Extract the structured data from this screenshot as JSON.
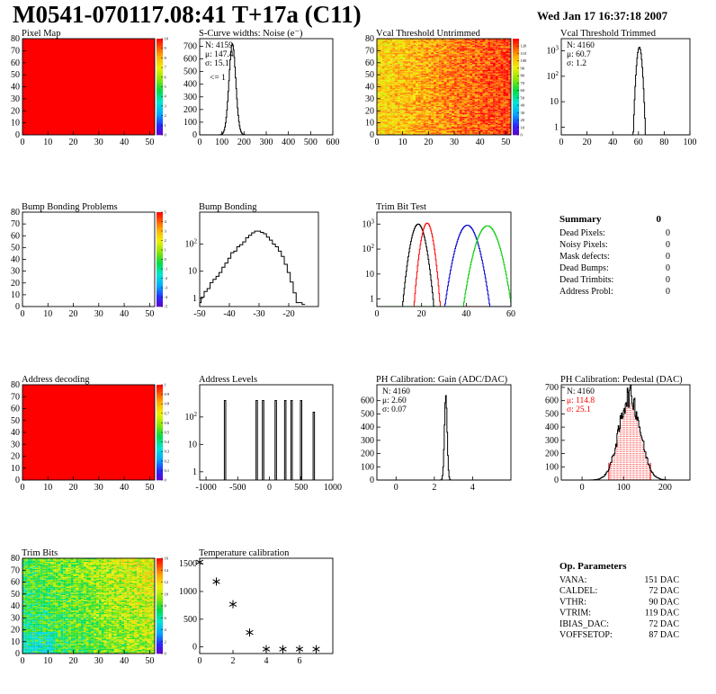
{
  "header": {
    "title": "M0541-070117.08:41 T+17a (C11)",
    "date": "Wed Jan 17 16:37:18 2007"
  },
  "colors": {
    "red_fill": "#ff0000",
    "black": "#000000",
    "red": "#ff0000",
    "blue": "#0000cc",
    "green": "#00cc00"
  },
  "summary": {
    "title": "Summary",
    "total": "0",
    "rows": [
      {
        "label": "Dead Pixels:",
        "value": "0"
      },
      {
        "label": "Noisy Pixels:",
        "value": "0"
      },
      {
        "label": "Mask defects:",
        "value": "0"
      },
      {
        "label": "Dead Bumps:",
        "value": "0"
      },
      {
        "label": "Dead Trimbits:",
        "value": "0"
      },
      {
        "label": "Address Probl:",
        "value": "0"
      }
    ]
  },
  "op_params": {
    "title": "Op. Parameters",
    "rows": [
      {
        "label": "VANA:",
        "value": "151 DAC"
      },
      {
        "label": "CALDEL:",
        "value": "72 DAC"
      },
      {
        "label": "VTHR:",
        "value": "90 DAC"
      },
      {
        "label": "VTRIM:",
        "value": "119 DAC"
      },
      {
        "label": "IBIAS_DAC:",
        "value": "72 DAC"
      },
      {
        "label": "VOFFSETOP:",
        "value": "87 DAC"
      }
    ]
  },
  "chart_data": [
    {
      "id": "pixel-map",
      "type": "heatmap",
      "title": "Pixel Map",
      "xlim": [
        0,
        52
      ],
      "ylim": [
        0,
        80
      ],
      "xticks": [
        0,
        10,
        20,
        30,
        40,
        50
      ],
      "yticks": [
        0,
        10,
        20,
        30,
        40,
        50,
        60,
        70,
        80
      ],
      "fill": "uniform",
      "uniform_value": 10,
      "zlim": [
        0,
        10
      ],
      "zticks": [
        0,
        1,
        2,
        3,
        4,
        5,
        6,
        7,
        8,
        9,
        10
      ]
    },
    {
      "id": "scurve-widths",
      "type": "histogram",
      "title": "S-Curve widths: Noise (e⁻)",
      "xlim": [
        0,
        600
      ],
      "ylim": [
        0,
        760
      ],
      "xticks": [
        0,
        100,
        200,
        300,
        400,
        500,
        600
      ],
      "yticks": [
        0,
        100,
        200,
        300,
        400,
        500,
        600,
        700
      ],
      "stats": [
        "N: 4159",
        "μ: 147.4",
        "σ: 15.1"
      ],
      "annotation": "<= 1",
      "series": [
        {
          "color": "black",
          "gauss": {
            "mean": 147.4,
            "sigma": 15.1,
            "peak": 720
          }
        }
      ]
    },
    {
      "id": "vcal-untrimmed",
      "type": "heatmap",
      "title": "Vcal Threshold Untrimmed",
      "xlim": [
        0,
        52
      ],
      "ylim": [
        0,
        80
      ],
      "xticks": [
        0,
        10,
        20,
        30,
        40,
        50
      ],
      "yticks": [
        0,
        10,
        20,
        30,
        40,
        50,
        60,
        70,
        80
      ],
      "fill": "untrimmed",
      "zlim": [
        0,
        130
      ],
      "zticks": [
        0,
        10,
        20,
        30,
        40,
        50,
        60,
        70,
        80,
        90,
        100,
        110,
        120
      ]
    },
    {
      "id": "vcal-trimmed",
      "type": "histogram",
      "title": "Vcal Threshold Trimmed",
      "logy": true,
      "xlim": [
        0,
        100
      ],
      "ylim": [
        0.5,
        3000
      ],
      "xticks": [
        0,
        20,
        40,
        60,
        80,
        100
      ],
      "yticks": [
        1,
        10,
        100,
        1000
      ],
      "stats": [
        "N: 4160",
        "μ: 60.7",
        "σ: 1.2"
      ],
      "series": [
        {
          "color": "black",
          "gauss": {
            "mean": 60.7,
            "sigma": 1.2,
            "peak": 1400
          }
        }
      ]
    },
    {
      "id": "bump-problems",
      "type": "heatmap",
      "title": "Bump Bonding Problems",
      "xlim": [
        0,
        52
      ],
      "ylim": [
        0,
        80
      ],
      "xticks": [
        0,
        10,
        20,
        30,
        40,
        50
      ],
      "yticks": [
        0,
        10,
        20,
        30,
        40,
        50,
        60,
        70,
        80
      ],
      "fill": "empty",
      "zlim": [
        -5,
        5
      ],
      "zticks": [
        -5,
        -4,
        -3,
        -2,
        -1,
        0,
        1,
        2,
        3,
        4,
        5
      ]
    },
    {
      "id": "bump-bonding",
      "type": "histogram",
      "title": "Bump Bonding",
      "logy": true,
      "xlim": [
        -50,
        -10
      ],
      "ylim": [
        0.5,
        1500
      ],
      "xticks": [
        -50,
        -40,
        -30,
        -20
      ],
      "yticks": [
        1,
        10,
        100
      ],
      "series": [
        {
          "color": "black",
          "points": [
            [
              -50,
              0.7
            ],
            [
              -49,
              1.1
            ],
            [
              -48,
              1.8
            ],
            [
              -47,
              2.3
            ],
            [
              -46,
              3.8
            ],
            [
              -45,
              5
            ],
            [
              -44,
              6.5
            ],
            [
              -43,
              9
            ],
            [
              -42,
              14
            ],
            [
              -41,
              20
            ],
            [
              -40,
              30
            ],
            [
              -39,
              48
            ],
            [
              -38,
              55
            ],
            [
              -37,
              80
            ],
            [
              -36,
              95
            ],
            [
              -35,
              120
            ],
            [
              -34,
              170
            ],
            [
              -33,
              210
            ],
            [
              -32,
              260
            ],
            [
              -31,
              300
            ],
            [
              -30,
              300
            ],
            [
              -29,
              270
            ],
            [
              -28,
              240
            ],
            [
              -27,
              180
            ],
            [
              -26,
              140
            ],
            [
              -25,
              100
            ],
            [
              -24,
              80
            ],
            [
              -23,
              55
            ],
            [
              -22,
              35
            ],
            [
              -21,
              18
            ],
            [
              -20,
              9
            ],
            [
              -19,
              4
            ],
            [
              -18,
              1.6
            ],
            [
              -17,
              0.7
            ],
            [
              -16,
              0.7
            ],
            [
              -15,
              0.6
            ]
          ]
        }
      ]
    },
    {
      "id": "trim-bit-test",
      "type": "histogram",
      "title": "Trim Bit Test",
      "logy": true,
      "xlim": [
        0,
        60
      ],
      "ylim": [
        0.5,
        3000
      ],
      "xticks": [
        0,
        20,
        40,
        60
      ],
      "yticks": [
        1,
        10,
        100,
        1000
      ],
      "series": [
        {
          "color": "black",
          "gauss": {
            "mean": 18.5,
            "sigma": 1.8,
            "peak": 1000
          }
        },
        {
          "color": "red",
          "gauss": {
            "mean": 22.5,
            "sigma": 1.5,
            "peak": 1100
          }
        },
        {
          "color": "blue",
          "gauss": {
            "mean": 40.5,
            "sigma": 2.6,
            "peak": 900
          }
        },
        {
          "color": "green",
          "gauss": {
            "mean": 49.5,
            "sigma": 2.8,
            "peak": 850
          }
        }
      ]
    },
    {
      "id": "address-decoding",
      "type": "heatmap",
      "title": "Address decoding",
      "xlim": [
        0,
        52
      ],
      "ylim": [
        0,
        80
      ],
      "xticks": [
        0,
        10,
        20,
        30,
        40,
        50
      ],
      "yticks": [
        0,
        10,
        20,
        30,
        40,
        50,
        60,
        70,
        80
      ],
      "fill": "uniform",
      "uniform_value": 1,
      "zlim": [
        0,
        1
      ],
      "zticks": [
        0,
        0.1,
        0.2,
        0.3,
        0.4,
        0.5,
        0.6,
        0.7,
        0.8,
        0.9,
        1
      ]
    },
    {
      "id": "address-levels",
      "type": "histogram",
      "title": "Address Levels",
      "logy": true,
      "xlim": [
        -1100,
        1000
      ],
      "ylim": [
        0.5,
        1500
      ],
      "xticks": [
        -1000,
        -500,
        0,
        500,
        1000
      ],
      "yticks": [
        1,
        10,
        100
      ],
      "series": [
        {
          "color": "black",
          "spikes": [
            [
              -700,
              400
            ],
            [
              -200,
              400
            ],
            [
              -100,
              400
            ],
            [
              100,
              400
            ],
            [
              250,
              400
            ],
            [
              350,
              400
            ],
            [
              500,
              400
            ],
            [
              700,
              150
            ]
          ],
          "spike_width": 22
        }
      ]
    },
    {
      "id": "ph-gain",
      "type": "histogram",
      "title": "PH Calibration: Gain (ADC/DAC)",
      "xlim": [
        -1,
        6
      ],
      "ylim": [
        0,
        720
      ],
      "xticks": [
        0,
        2,
        4
      ],
      "yticks": [
        0,
        100,
        200,
        300,
        400,
        500,
        600
      ],
      "stats": [
        "N: 4160",
        "μ: 2.60",
        "σ: 0.07"
      ],
      "series": [
        {
          "color": "black",
          "gauss": {
            "mean": 2.6,
            "sigma": 0.07,
            "peak": 640
          }
        }
      ]
    },
    {
      "id": "ph-pedestal",
      "type": "histogram",
      "title": "PH Calibration: Pedestal (DAC)",
      "xlim": [
        -50,
        260
      ],
      "ylim": [
        0,
        720
      ],
      "xticks": [
        0,
        100,
        200
      ],
      "yticks": [
        0,
        100,
        200,
        300,
        400,
        500,
        600,
        700
      ],
      "stats": [
        "N: 4160",
        "μ: 114.8",
        "σ: 25.1"
      ],
      "stats_colors": [
        "black",
        "red",
        "red"
      ],
      "series": [
        {
          "color": "black",
          "gauss": {
            "mean": 114.8,
            "sigma": 25.1,
            "peak": 640
          },
          "noisy": true
        }
      ],
      "marker_lines": [
        64.6,
        165.0
      ]
    },
    {
      "id": "trim-bits",
      "type": "heatmap",
      "title": "Trim Bits",
      "xlim": [
        0,
        52
      ],
      "ylim": [
        0,
        80
      ],
      "xticks": [
        0,
        10,
        20,
        30,
        40,
        50
      ],
      "yticks": [
        0,
        10,
        20,
        30,
        40,
        50,
        60,
        70,
        80
      ],
      "fill": "trimbits",
      "zlim": [
        0,
        16
      ],
      "zticks": [
        0,
        2,
        4,
        6,
        8,
        10,
        12,
        14,
        16
      ]
    },
    {
      "id": "temperature-calibration",
      "type": "scatter",
      "title": "Temperature calibration",
      "xlim": [
        0,
        8
      ],
      "ylim": [
        -120,
        1600
      ],
      "xticks": [
        0,
        2,
        4,
        6
      ],
      "yticks": [
        0,
        500,
        1000,
        1500
      ],
      "points": [
        [
          0,
          1530
        ],
        [
          1,
          1180
        ],
        [
          2,
          770
        ],
        [
          3,
          260
        ],
        [
          4,
          -40
        ],
        [
          5,
          -40
        ],
        [
          6,
          -40
        ],
        [
          7,
          -40
        ]
      ]
    }
  ]
}
